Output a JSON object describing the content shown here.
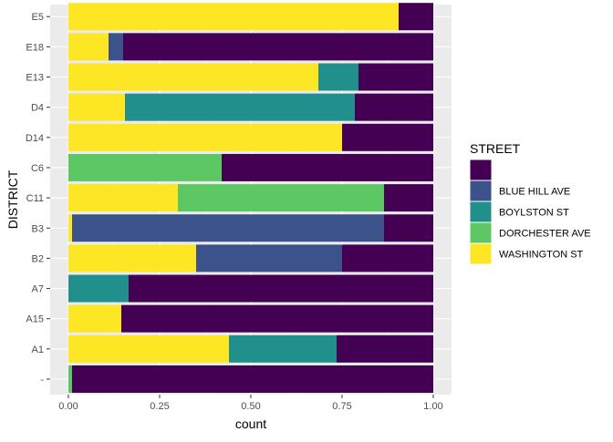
{
  "chart_data": {
    "type": "bar",
    "orientation": "horizontal",
    "stacked": "fill",
    "xlabel": "count",
    "ylabel": "DISTRICT",
    "xlim": [
      0,
      1
    ],
    "x_ticks": [
      "0.00",
      "0.25",
      "0.50",
      "0.75",
      "1.00"
    ],
    "x_tick_values": [
      0,
      0.25,
      0.5,
      0.75,
      1.0
    ],
    "grid": true,
    "legend_position": "right",
    "legend_title": "STREET",
    "categories": [
      "-",
      "A1",
      "A15",
      "A7",
      "B2",
      "B3",
      "C11",
      "C6",
      "D14",
      "D4",
      "E13",
      "E18",
      "E5"
    ],
    "series": [
      {
        "name": "",
        "color": "#440154",
        "values": [
          0.99,
          0.265,
          0.855,
          0.835,
          0.25,
          0.135,
          0.135,
          0.58,
          0.25,
          0.215,
          0.205,
          0.85,
          0.095
        ]
      },
      {
        "name": "BLUE HILL AVE",
        "color": "#3B528B",
        "values": [
          0,
          0,
          0,
          0,
          0.4,
          0.855,
          0,
          0,
          0,
          0,
          0,
          0.04,
          0
        ]
      },
      {
        "name": "BOYLSTON ST",
        "color": "#21908C",
        "values": [
          0,
          0.295,
          0,
          0.165,
          0,
          0,
          0,
          0,
          0,
          0.63,
          0.11,
          0,
          0
        ]
      },
      {
        "name": "DORCHESTER AVE",
        "color": "#5DC863",
        "values": [
          0.01,
          0,
          0,
          0,
          0,
          0,
          0.565,
          0.42,
          0,
          0,
          0,
          0,
          0
        ]
      },
      {
        "name": "WASHINGTON ST",
        "color": "#FDE725",
        "values": [
          0,
          0.44,
          0.145,
          0,
          0.35,
          0.01,
          0.3,
          0,
          0.75,
          0.155,
          0.685,
          0.11,
          0.905
        ]
      }
    ]
  }
}
